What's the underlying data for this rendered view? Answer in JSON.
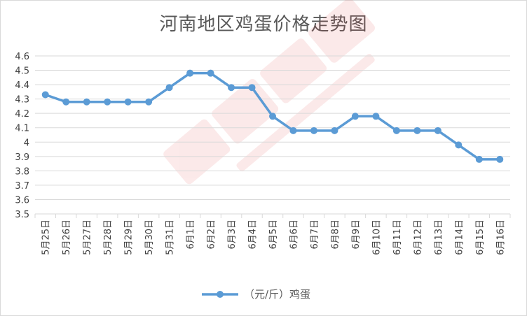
{
  "chart_data": {
    "type": "line",
    "title": "河南地区鸡蛋价格走势图",
    "xlabel": "",
    "ylabel": "",
    "ylim": [
      3.5,
      4.6
    ],
    "ytick_step": 0.1,
    "grid": "horizontal",
    "legend_position": "bottom",
    "colors": {
      "series": "#5b9bd5",
      "grid": "#d9d9d9",
      "text": "#404040"
    },
    "categories": [
      "5月25日",
      "5月26日",
      "5月27日",
      "5月28日",
      "5月29日",
      "5月30日",
      "5月31日",
      "6月1日",
      "6月2日",
      "6月3日",
      "6月4日",
      "6月5日",
      "6月6日",
      "6月7日",
      "6月8日",
      "6月9日",
      "6月10日",
      "6月11日",
      "6月12日",
      "6月13日",
      "6月14日",
      "6月15日",
      "6月16日"
    ],
    "y_tick_labels": [
      "3.5",
      "3.6",
      "3.7",
      "3.8",
      "3.9",
      "4",
      "4.1",
      "4.2",
      "4.3",
      "4.4",
      "4.5",
      "4.6"
    ],
    "series": [
      {
        "name": "（元/斤）鸡蛋",
        "values": [
          4.33,
          4.28,
          4.28,
          4.28,
          4.28,
          4.28,
          4.38,
          4.48,
          4.48,
          4.38,
          4.38,
          4.18,
          4.08,
          4.08,
          4.08,
          4.18,
          4.18,
          4.08,
          4.08,
          4.08,
          3.98,
          3.88,
          3.88
        ]
      }
    ]
  }
}
